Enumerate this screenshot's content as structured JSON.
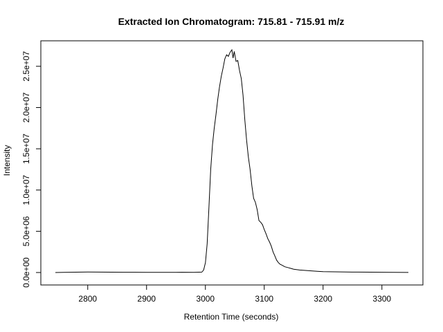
{
  "chart_data": {
    "type": "line",
    "title": "Extracted Ion Chromatogram: 715.81 - 715.91 m/z",
    "xlabel": "Retention Time (seconds)",
    "ylabel": "Intensity",
    "xlim": [
      2745,
      3345
    ],
    "ylim": [
      0,
      27000000
    ],
    "x_ticks": [
      2800,
      2900,
      3000,
      3100,
      3200,
      3300
    ],
    "x_tick_labels": [
      "2800",
      "2900",
      "3000",
      "3100",
      "3200",
      "3300"
    ],
    "y_ticks": [
      0,
      5000000,
      10000000,
      15000000,
      20000000,
      25000000
    ],
    "y_tick_labels": [
      "0.0e+00",
      "5.0e+06",
      "1.0e+07",
      "1.5e+07",
      "2.0e+07",
      "2.5e+07"
    ],
    "grid": false,
    "legend": "none",
    "series": [
      {
        "x": [
          2745,
          2760,
          2780,
          2800,
          2820,
          2840,
          2860,
          2880,
          2900,
          2920,
          2940,
          2960,
          2980,
          2994,
          2997,
          3000,
          3003,
          3006,
          3009,
          3012,
          3015,
          3018,
          3021,
          3024,
          3027,
          3030,
          3033,
          3036,
          3039,
          3042,
          3045,
          3047,
          3049,
          3052,
          3055,
          3058,
          3061,
          3064,
          3067,
          3070,
          3073,
          3076,
          3079,
          3082,
          3085,
          3088,
          3091,
          3094,
          3097,
          3100,
          3103,
          3106,
          3109,
          3112,
          3115,
          3118,
          3121,
          3124,
          3127,
          3130,
          3135,
          3140,
          3145,
          3150,
          3160,
          3170,
          3180,
          3190,
          3200,
          3220,
          3240,
          3260,
          3280,
          3300,
          3320,
          3345
        ],
        "y": [
          0,
          20000,
          40000,
          60000,
          50000,
          40000,
          30000,
          30000,
          20000,
          20000,
          20000,
          30000,
          20000,
          50000,
          300000,
          1200000,
          3500000,
          8000000,
          12500000,
          15500000,
          17500000,
          19200000,
          21000000,
          22500000,
          23800000,
          24800000,
          25900000,
          26400000,
          26200000,
          26700000,
          27000000,
          26000000,
          26800000,
          25600000,
          25700000,
          24500000,
          23500000,
          21500000,
          18500000,
          16000000,
          14000000,
          12500000,
          10500000,
          9000000,
          8500000,
          7600000,
          6300000,
          6100000,
          5800000,
          5200000,
          4700000,
          4100000,
          3700000,
          3200000,
          2500000,
          2000000,
          1500000,
          1200000,
          1000000,
          900000,
          700000,
          600000,
          500000,
          400000,
          300000,
          250000,
          200000,
          150000,
          100000,
          80000,
          60000,
          50000,
          40000,
          30000,
          20000,
          10000
        ]
      }
    ]
  }
}
